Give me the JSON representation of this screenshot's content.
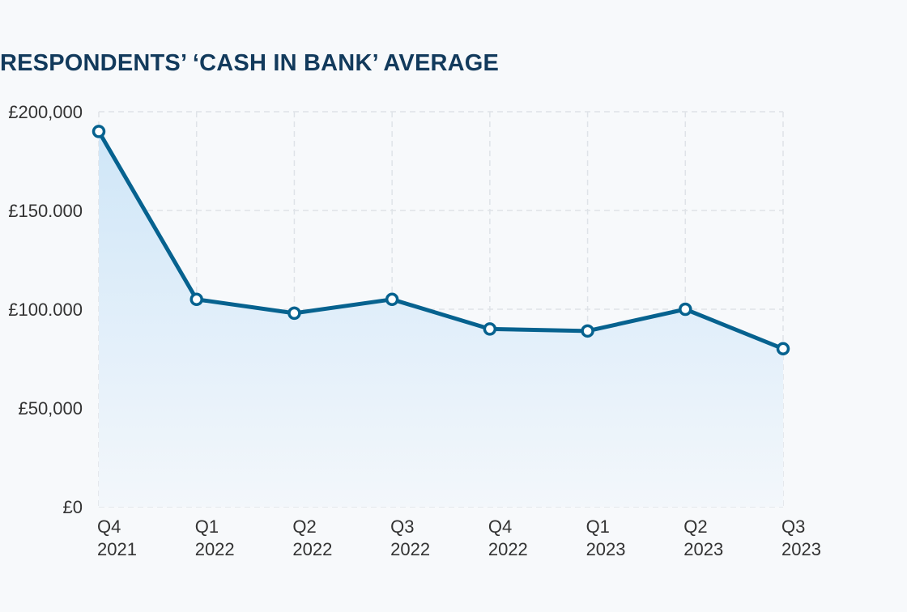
{
  "chart_data": {
    "type": "area",
    "title": "RESPONDENTS’ ‘CASH IN BANK’ AVERAGE",
    "categories": [
      [
        "Q4",
        "2021"
      ],
      [
        "Q1",
        "2022"
      ],
      [
        "Q2",
        "2022"
      ],
      [
        "Q3",
        "2022"
      ],
      [
        "Q4",
        "2022"
      ],
      [
        "Q1",
        "2023"
      ],
      [
        "Q2",
        "2023"
      ],
      [
        "Q3",
        "2023"
      ]
    ],
    "values": [
      190000,
      105000,
      98000,
      105000,
      90000,
      89000,
      100000,
      80000
    ],
    "yticks": [
      {
        "value": 0,
        "label": "£0"
      },
      {
        "value": 50000,
        "label": "£50,000"
      },
      {
        "value": 100000,
        "label": "£100.000"
      },
      {
        "value": 150000,
        "label": "£150.000"
      },
      {
        "value": 200000,
        "label": "£200,000"
      }
    ],
    "ylim": [
      0,
      200000
    ],
    "xlabel": "",
    "ylabel": "",
    "grid": true,
    "colors": {
      "line": "#06628f",
      "fill_top": "#cfe6f8",
      "fill_bottom": "#f3f7fb",
      "grid": "#dfe3e8",
      "marker_fill": "#ffffff"
    }
  }
}
